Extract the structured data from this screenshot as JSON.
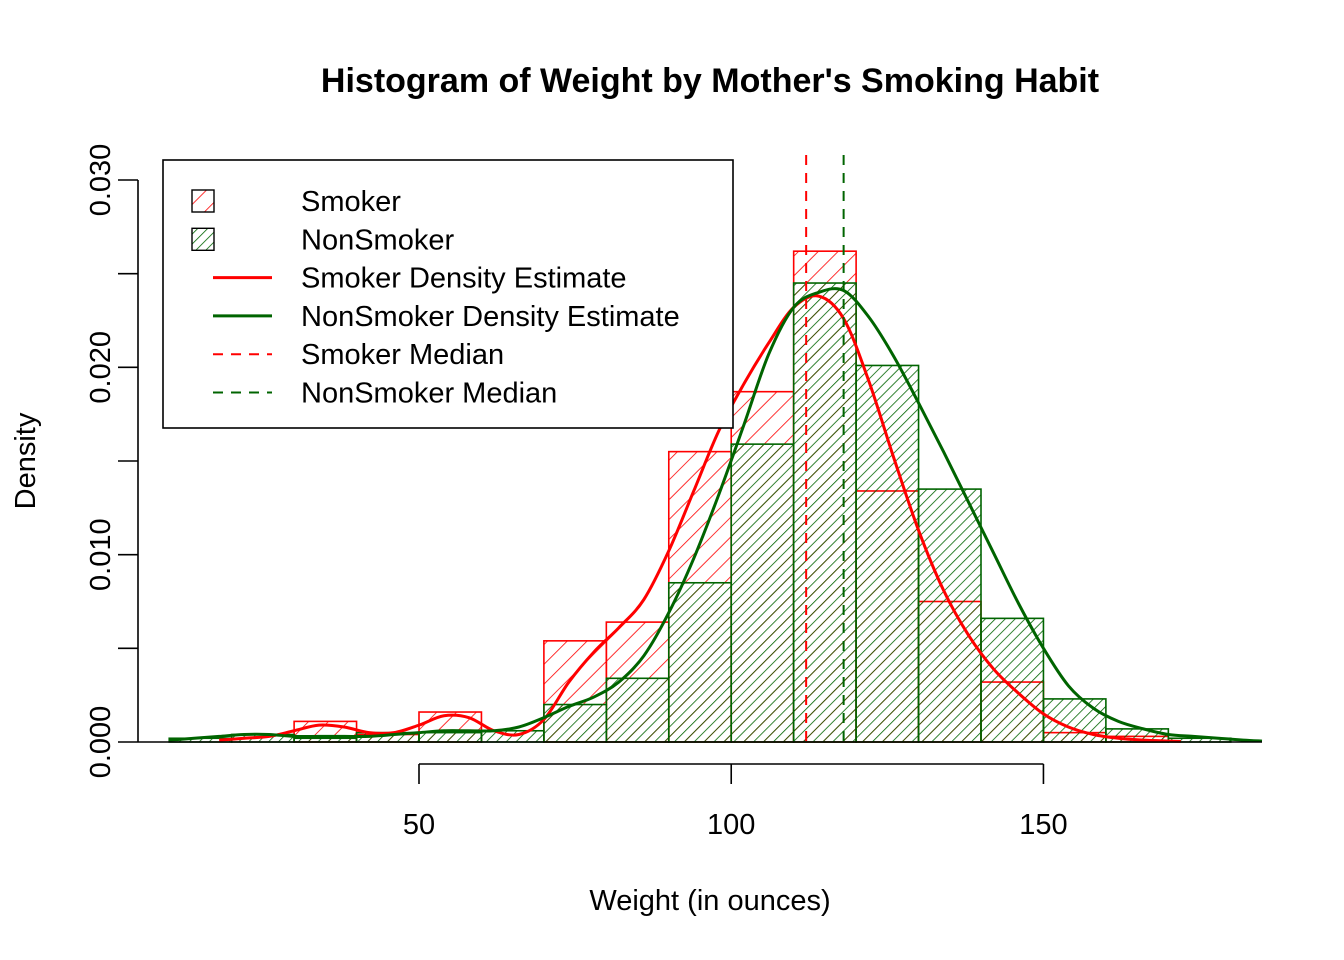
{
  "chart_data": {
    "type": "bar",
    "title": "Histogram of Weight by Mother's Smoking Habit",
    "xlabel": "Weight (in ounces)",
    "ylabel": "Density",
    "xlim": [
      5,
      185
    ],
    "ylim": [
      0,
      0.031
    ],
    "x_ticks": [
      50,
      100,
      150
    ],
    "x_tick_labels": [
      "50",
      "100",
      "150"
    ],
    "y_ticks": [
      0.0,
      0.005,
      0.01,
      0.015,
      0.02,
      0.025,
      0.03
    ],
    "y_tick_labels": [
      "0.000",
      "",
      "0.010",
      "",
      "0.020",
      "",
      "0.030"
    ],
    "bins": [
      [
        10,
        20
      ],
      [
        20,
        30
      ],
      [
        30,
        40
      ],
      [
        40,
        50
      ],
      [
        50,
        60
      ],
      [
        60,
        70
      ],
      [
        70,
        80
      ],
      [
        80,
        90
      ],
      [
        90,
        100
      ],
      [
        100,
        110
      ],
      [
        110,
        120
      ],
      [
        120,
        130
      ],
      [
        130,
        140
      ],
      [
        140,
        150
      ],
      [
        150,
        160
      ],
      [
        160,
        170
      ],
      [
        170,
        180
      ]
    ],
    "series": [
      {
        "name": "Smoker",
        "color": "#ff0000",
        "hatch": "single",
        "values": [
          0,
          0,
          0.0011,
          0.0004,
          0.0016,
          0,
          0.0054,
          0.0064,
          0.0155,
          0.0187,
          0.0262,
          0.0134,
          0.0075,
          0.0032,
          0.0005,
          0.0003,
          0
        ]
      },
      {
        "name": "NonSmoker",
        "color": "#006400",
        "hatch": "double",
        "values": [
          0.0002,
          0.0004,
          0.0002,
          0.0005,
          0.0005,
          0.0006,
          0.002,
          0.0034,
          0.0085,
          0.0159,
          0.0245,
          0.0201,
          0.0135,
          0.0066,
          0.0023,
          0.0007,
          0.0002
        ]
      }
    ],
    "density_curves": [
      {
        "name": "Smoker Density Estimate",
        "color": "#ff0000",
        "x": [
          18,
          22,
          26,
          30,
          34,
          38,
          42,
          46,
          50,
          54,
          58,
          62,
          66,
          70,
          74,
          78,
          82,
          86,
          90,
          94,
          98,
          102,
          106,
          110,
          114,
          118,
          122,
          126,
          130,
          134,
          138,
          142,
          146,
          150,
          154,
          158,
          162,
          166,
          170,
          172
        ],
        "y": [
          0.0001,
          0.0002,
          0.0003,
          0.0006,
          0.0009,
          0.0008,
          0.0005,
          0.0005,
          0.0009,
          0.0014,
          0.0013,
          0.0006,
          0.0004,
          0.0012,
          0.0032,
          0.0048,
          0.0061,
          0.0076,
          0.0102,
          0.0134,
          0.0166,
          0.0191,
          0.0213,
          0.0232,
          0.0238,
          0.0226,
          0.0193,
          0.0152,
          0.0113,
          0.0081,
          0.0057,
          0.0039,
          0.0026,
          0.0015,
          0.0008,
          0.0004,
          0.0002,
          0.0001,
          5e-05,
          3e-05
        ]
      },
      {
        "name": "NonSmoker Density Estimate",
        "color": "#006400",
        "x": [
          10,
          14,
          18,
          22,
          26,
          30,
          34,
          38,
          42,
          46,
          50,
          54,
          58,
          62,
          66,
          70,
          74,
          78,
          82,
          86,
          90,
          94,
          98,
          102,
          106,
          110,
          114,
          118,
          122,
          126,
          130,
          134,
          138,
          142,
          146,
          150,
          154,
          158,
          162,
          166,
          170,
          174,
          178,
          182,
          185
        ],
        "y": [
          0.0001,
          0.0002,
          0.0003,
          0.0004,
          0.0004,
          0.0003,
          0.0003,
          0.0003,
          0.0003,
          0.0004,
          0.0005,
          0.0006,
          0.0006,
          0.0006,
          0.0008,
          0.0013,
          0.0019,
          0.0024,
          0.0032,
          0.0046,
          0.0069,
          0.0098,
          0.0132,
          0.0169,
          0.0207,
          0.0232,
          0.024,
          0.0241,
          0.0227,
          0.0206,
          0.0181,
          0.0155,
          0.0128,
          0.0101,
          0.0074,
          0.005,
          0.003,
          0.0018,
          0.0011,
          0.0007,
          0.0004,
          0.0003,
          0.0002,
          0.0001,
          5e-05
        ]
      }
    ],
    "medians": [
      {
        "name": "Smoker Median",
        "color": "#ff0000",
        "x": 112
      },
      {
        "name": "NonSmoker Median",
        "color": "#006400",
        "x": 118
      }
    ],
    "legend": {
      "position": "top-left",
      "entries": [
        {
          "label": "Smoker",
          "kind": "hatch-single",
          "color": "#ff0000"
        },
        {
          "label": "NonSmoker",
          "kind": "hatch-double",
          "color": "#006400"
        },
        {
          "label": "Smoker Density Estimate",
          "kind": "line",
          "color": "#ff0000"
        },
        {
          "label": "NonSmoker Density Estimate",
          "kind": "line",
          "color": "#006400"
        },
        {
          "label": "Smoker Median",
          "kind": "dashed",
          "color": "#ff0000"
        },
        {
          "label": "NonSmoker Median",
          "kind": "dashed",
          "color": "#006400"
        }
      ]
    },
    "grid": false
  }
}
